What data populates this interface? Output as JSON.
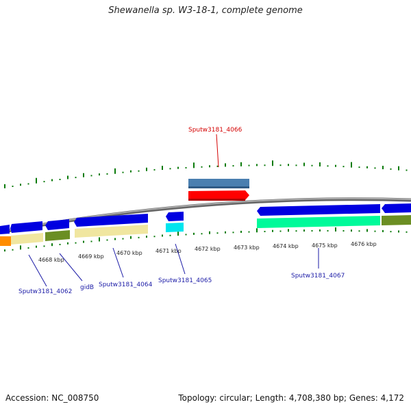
{
  "title": "Shewanella sp. W3-18-1, complete genome",
  "footer": {
    "accession": "Accession: NC_008750",
    "summary": "Topology: circular; Length: 4,708,380 bp; Genes: 4,172"
  },
  "ticks": [
    "4668 kbp",
    "4669 kbp",
    "4670 kbp",
    "4671 kbp",
    "4672 kbp",
    "4673 kbp",
    "4674 kbp",
    "4675 kbp",
    "4676 kbp"
  ],
  "labels": [
    {
      "text": "Sputw3181_4066",
      "color": "#d40000"
    },
    {
      "text": "Sputw3181_4062",
      "color": "#1a1aa6"
    },
    {
      "text": "gidB",
      "color": "#1a1aa6"
    },
    {
      "text": "Sputw3181_4064",
      "color": "#1a1aa6"
    },
    {
      "text": "Sputw3181_4065",
      "color": "#1a1aa6"
    },
    {
      "text": "Sputw3181_4067",
      "color": "#1a1aa6"
    }
  ],
  "colors": {
    "backbone": "#8a8a8a",
    "forward_gene": "#0000e0",
    "highlight_gene": "#ff0000",
    "steelblue_track": "#4a7fb0",
    "cog_khaki": "#f0e6a0",
    "cog_olive": "#6b8e23",
    "cog_orange": "#ff8c00",
    "cog_cyan": "#00e5ee",
    "cog_mint": "#00fa9a",
    "tick_green": "#0a7a0a"
  }
}
